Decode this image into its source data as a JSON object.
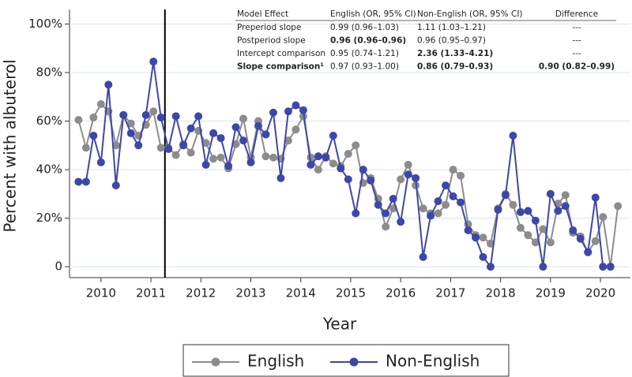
{
  "chart_data": {
    "type": "line",
    "xlabel": "Year",
    "ylabel": "Percent with albuterol",
    "x": [
      2009.55,
      2009.7,
      2009.85,
      2010.0,
      2010.15,
      2010.3,
      2010.45,
      2010.6,
      2010.75,
      2010.9,
      2011.05,
      2011.2,
      2011.35,
      2011.5,
      2011.65,
      2011.8,
      2011.95,
      2012.1,
      2012.25,
      2012.4,
      2012.55,
      2012.7,
      2012.85,
      2013.0,
      2013.15,
      2013.3,
      2013.45,
      2013.6,
      2013.75,
      2013.9,
      2014.05,
      2014.2,
      2014.35,
      2014.5,
      2014.65,
      2014.8,
      2014.95,
      2015.1,
      2015.25,
      2015.4,
      2015.55,
      2015.7,
      2015.85,
      2016.0,
      2016.15,
      2016.3,
      2016.45,
      2016.6,
      2016.75,
      2016.9,
      2017.05,
      2017.2,
      2017.35,
      2017.5,
      2017.65,
      2017.8,
      2017.95,
      2018.1,
      2018.25,
      2018.4,
      2018.55,
      2018.7,
      2018.85,
      2019.0,
      2019.15,
      2019.3,
      2019.45,
      2019.6,
      2019.75,
      2019.9,
      2020.05,
      2020.2,
      2020.35
    ],
    "series": [
      {
        "name": "English",
        "color": "#8c8c8c",
        "values": [
          60.5,
          49,
          61.5,
          67,
          64,
          50,
          62.5,
          59,
          54,
          58.5,
          64,
          49,
          49,
          46,
          50.5,
          47,
          56,
          51,
          44.5,
          45,
          40.5,
          50.5,
          61,
          45,
          60,
          45.5,
          45,
          44.5,
          52,
          56.5,
          62,
          45,
          40,
          45.5,
          42.5,
          41.5,
          46.5,
          50,
          34.5,
          36.5,
          28,
          16.5,
          24,
          36,
          42,
          33.5,
          24,
          22,
          22,
          25.5,
          40,
          37.5,
          17.5,
          13,
          12,
          9.5,
          24,
          30,
          25.5,
          16,
          13,
          10,
          15.5,
          10,
          26,
          29.5,
          14,
          12.5,
          6,
          10.5,
          20.5,
          0,
          25
        ]
      },
      {
        "name": "Non-English",
        "color": "#3d47a9",
        "values": [
          35,
          35,
          54,
          43,
          75,
          33.5,
          62.5,
          55,
          50,
          62.5,
          84.5,
          61.5,
          48.5,
          62,
          50,
          57,
          62,
          42,
          55,
          53,
          41.5,
          57.5,
          52,
          43,
          58,
          54.5,
          63.5,
          36.5,
          64,
          66.5,
          64.5,
          42,
          45.5,
          45,
          54,
          40.5,
          36,
          22,
          40,
          35.5,
          25.5,
          22,
          28,
          18.5,
          38,
          36.5,
          4,
          21,
          27,
          33.5,
          29,
          26.5,
          15,
          12,
          4,
          0,
          23.5,
          29.5,
          54,
          22.5,
          23,
          19,
          0,
          30,
          23,
          25,
          15,
          11.5,
          6,
          28.5,
          0,
          0,
          null
        ]
      }
    ],
    "xlim": [
      2009.37,
      2020.6
    ],
    "xticks": [
      2010,
      2011,
      2012,
      2013,
      2014,
      2015,
      2016,
      2017,
      2018,
      2019,
      2020
    ],
    "ylim": [
      -4.5,
      106
    ],
    "yticks": [
      0,
      {
        "value": 20,
        "label": "20%"
      },
      {
        "value": 40,
        "label": "40%"
      },
      {
        "value": 60,
        "label": "60%"
      },
      {
        "value": 80,
        "label": "80%"
      },
      {
        "value": 100,
        "label": "100%"
      }
    ],
    "grid": true,
    "vline_x": 2011.28,
    "legend": "bottom",
    "table": {
      "header": [
        "Model Effect",
        "English (OR, 95% CI)",
        "Non-English (OR, 95% CI)",
        "Difference"
      ],
      "rows": [
        [
          "Preperiod slope",
          "0.99 (0.96–1.03)",
          "1.11 (1.03–1.21)",
          "---"
        ],
        [
          "Postperiod slope",
          "0.96 (0.96–0.96)",
          "0.96 (0.95–0.97)",
          "---"
        ],
        [
          "Intercept comparison",
          "0.95 (0.74–1.21)",
          "2.36 (1.33–4.21)",
          "---"
        ],
        [
          "Slope comparison¹",
          "0.97 (0.93–1.00)",
          "0.86 (0.79–0.93)",
          "0.90 (0.82–0.99)"
        ]
      ]
    }
  }
}
